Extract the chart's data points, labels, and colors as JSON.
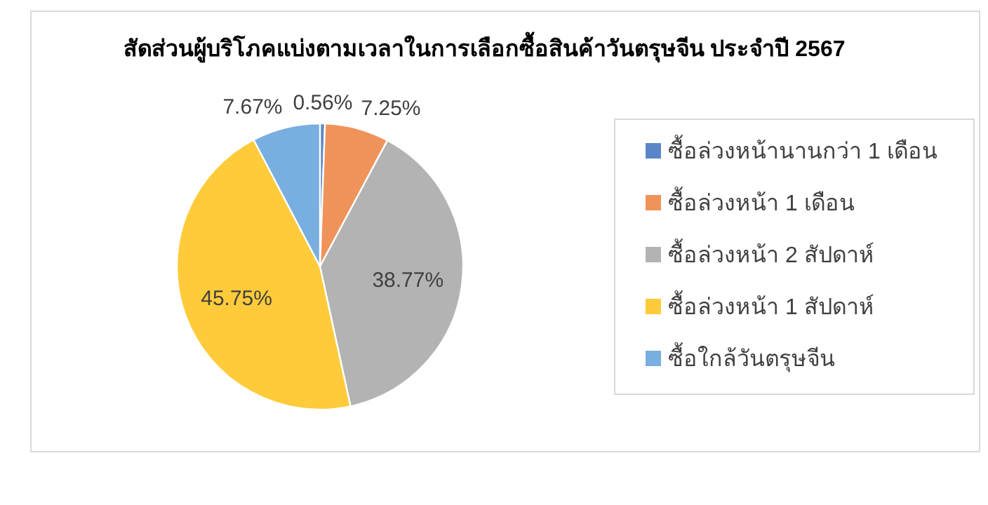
{
  "chart_data": {
    "type": "pie",
    "title": "สัดส่วนผู้บริโภคแบ่งตามเวลาในการเลือกซื้อสินค้าวันตรุษจีน ประจำปี 2567",
    "categories": [
      "ซื้อล่วงหน้านานกว่า 1 เดือน",
      "ซื้อล่วงหน้า 1 เดือน",
      "ซื้อล่วงหน้า 2 สัปดาห์",
      "ซื้อล่วงหน้า 1 สัปดาห์",
      "ซื้อใกล้วันตรุษจีน"
    ],
    "values": [
      0.56,
      7.25,
      38.77,
      45.75,
      7.67
    ],
    "value_labels": [
      "0.56%",
      "7.25%",
      "38.77%",
      "45.75%",
      "7.67%"
    ],
    "colors": [
      "#5a86c9",
      "#f0935a",
      "#b3b3b3",
      "#ffcb3a",
      "#79aee0"
    ],
    "legend": "right"
  }
}
